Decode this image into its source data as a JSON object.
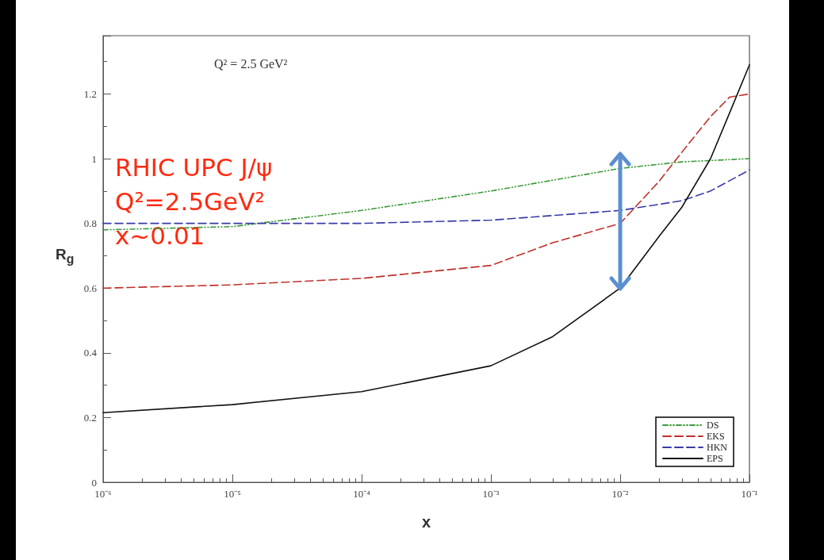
{
  "chart_data": {
    "type": "line",
    "xlabel": "x",
    "ylabel": "R$_{g}$",
    "annotations": [
      "Q² = 2.5 GeV²",
      "RHIC UPC J/ψ",
      "Q²=2.5GeV²",
      "x~0.01"
    ],
    "log": "x",
    "xlim": [
      1e-06,
      0.1
    ],
    "xticks": [
      {
        "value": 1e-06,
        "label": "10⁻⁶"
      },
      {
        "value": 1e-05,
        "label": "10⁻⁵"
      },
      {
        "value": 0.0001,
        "label": "10⁻⁴"
      },
      {
        "value": 0.001,
        "label": "10⁻³"
      },
      {
        "value": 0.01,
        "label": "10⁻²"
      },
      {
        "value": 0.1,
        "label": "10⁻¹"
      }
    ],
    "ylim": [
      0,
      1.38
    ],
    "yticks": [
      0,
      0.2,
      0.4,
      0.6,
      0.8,
      1,
      1.2
    ],
    "grid": false,
    "legend": "bottom right",
    "marker": "none",
    "series": [
      {
        "name": "DS",
        "color": "#3a9a3a",
        "line_style": "dotted",
        "x": [
          1e-06,
          1e-05,
          0.0001,
          0.001,
          0.01,
          0.03,
          0.1
        ],
        "values": [
          0.78,
          0.79,
          0.84,
          0.9,
          0.97,
          0.99,
          1.0
        ]
      },
      {
        "name": "EKS",
        "color": "#c0302a",
        "line_style": "dashed",
        "x": [
          1e-06,
          1e-05,
          0.0001,
          0.001,
          0.003,
          0.01,
          0.02,
          0.03,
          0.05,
          0.07,
          0.1
        ],
        "values": [
          0.6,
          0.61,
          0.63,
          0.67,
          0.74,
          0.8,
          0.93,
          1.02,
          1.13,
          1.19,
          1.2
        ]
      },
      {
        "name": "HKN",
        "color": "#3a3aa8",
        "line_style": "dashed",
        "x": [
          1e-06,
          0.0001,
          0.001,
          0.01,
          0.03,
          0.05,
          0.1
        ],
        "values": [
          0.8,
          0.8,
          0.81,
          0.84,
          0.87,
          0.9,
          0.965
        ]
      },
      {
        "name": "EPS",
        "color": "#111111",
        "line_style": "solid",
        "x": [
          1e-06,
          1e-05,
          0.0001,
          0.001,
          0.003,
          0.01,
          0.02,
          0.03,
          0.05,
          0.07,
          0.1
        ],
        "values": [
          0.215,
          0.24,
          0.28,
          0.36,
          0.45,
          0.6,
          0.76,
          0.85,
          1.0,
          1.14,
          1.29
        ]
      }
    ]
  }
}
